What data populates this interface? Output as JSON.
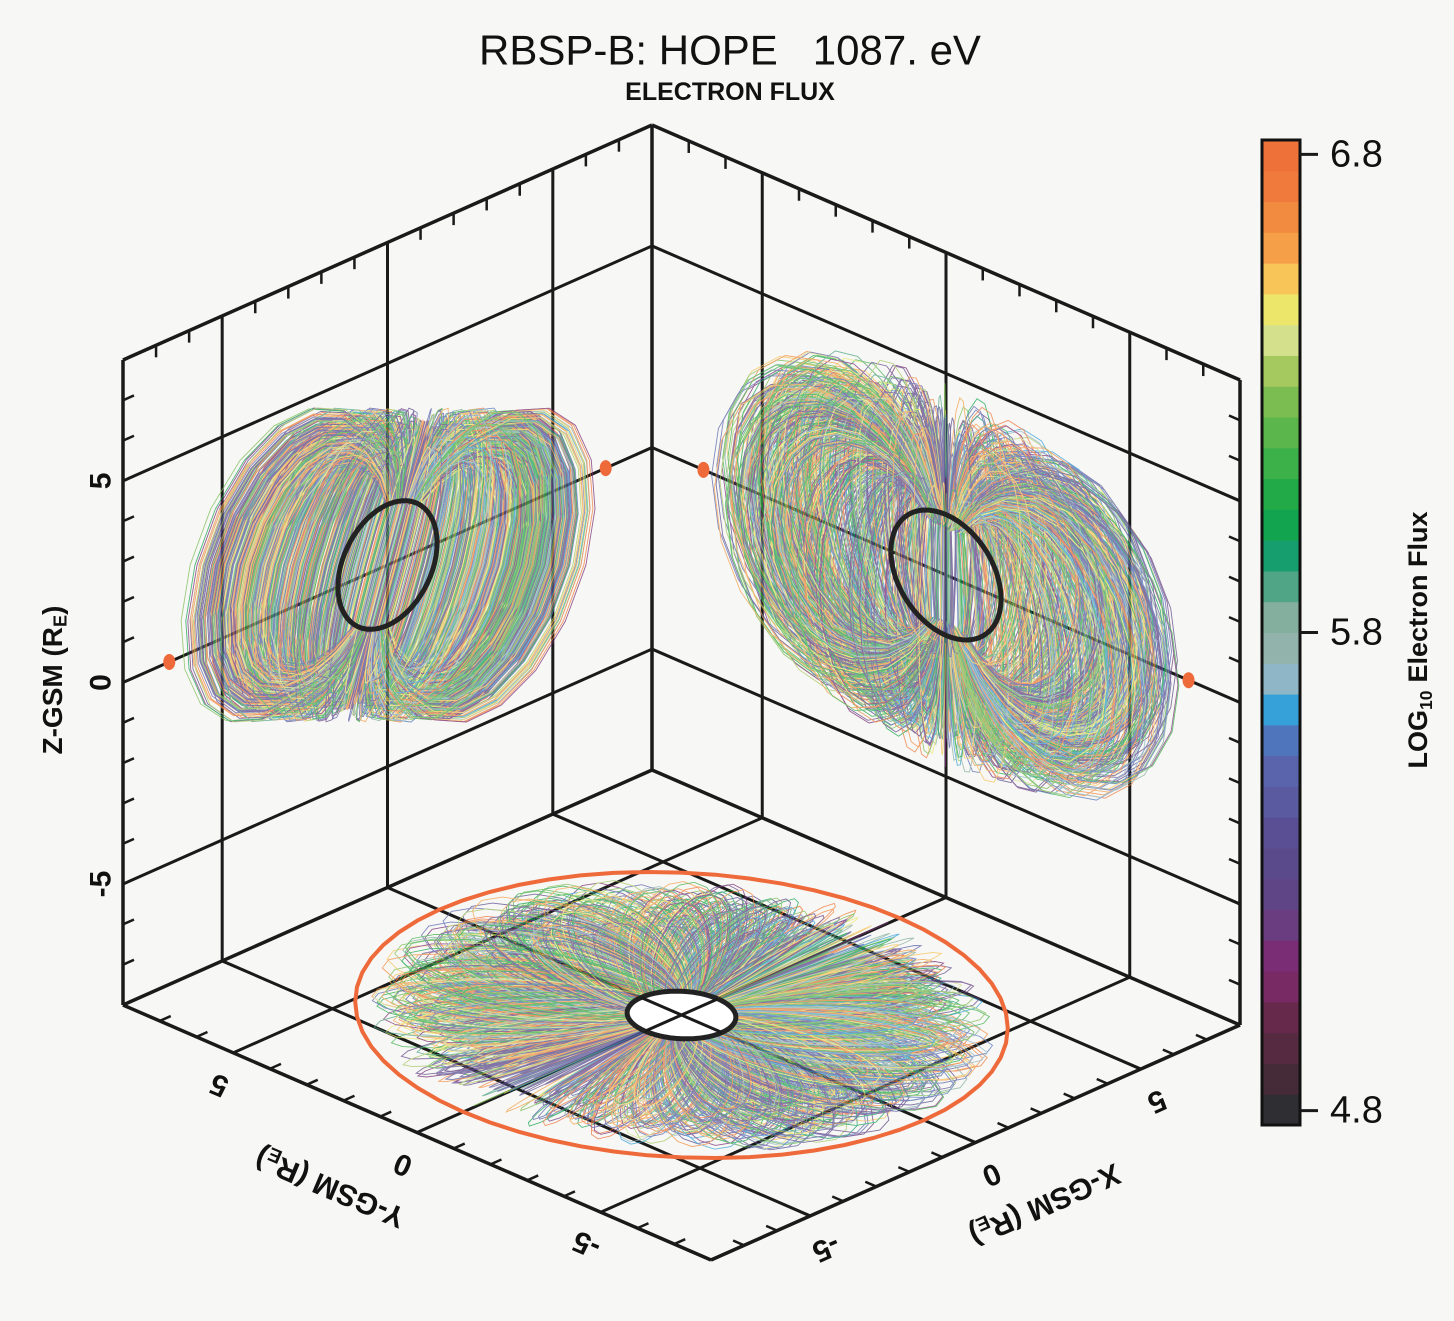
{
  "chart_data": {
    "type": "orbit3d",
    "title": "RBSP-B: HOPE   1087. eV",
    "subtitle": "ELECTRON FLUX",
    "xlabel": {
      "text": "X-GSM (R",
      "subscript": "E",
      "suffix": ")"
    },
    "ylabel": {
      "text": "Y-GSM (R",
      "subscript": "E",
      "suffix": ")"
    },
    "zlabel": {
      "text": "Z-GSM (R",
      "subscript": "E",
      "suffix": ")"
    },
    "xlim": [
      -8,
      8
    ],
    "ylim": [
      -8,
      8
    ],
    "zlim": [
      -8,
      8
    ],
    "xticks": [
      -5,
      0,
      5
    ],
    "yticks": [
      -5,
      0,
      5
    ],
    "zticks": [
      -5,
      0,
      5
    ],
    "grid": true,
    "colorbar": {
      "label": {
        "text": "LOG",
        "subscript": "10",
        "suffix": "Electron Flux"
      },
      "lim": [
        4.77,
        6.83
      ],
      "ticks": [
        4.8,
        5.8,
        6.8
      ],
      "colors": [
        "#2e2e33",
        "#452b38",
        "#562a40",
        "#66294b",
        "#772a63",
        "#7a2d75",
        "#6a3c80",
        "#5f4586",
        "#5a4a8c",
        "#5a4f95",
        "#5a5aa0",
        "#5a64ad",
        "#4f75bd",
        "#36a0d8",
        "#8fb6c6",
        "#91b3ab",
        "#84ae9d",
        "#4fa585",
        "#179e6e",
        "#13a450",
        "#22aa48",
        "#3cb14a",
        "#5bb64b",
        "#7cbd52",
        "#a5c95f",
        "#d4e08c",
        "#ece76a",
        "#f7c558",
        "#f59f48",
        "#f28b3f",
        "#ef7a3b",
        "#ee713a"
      ]
    }
  }
}
